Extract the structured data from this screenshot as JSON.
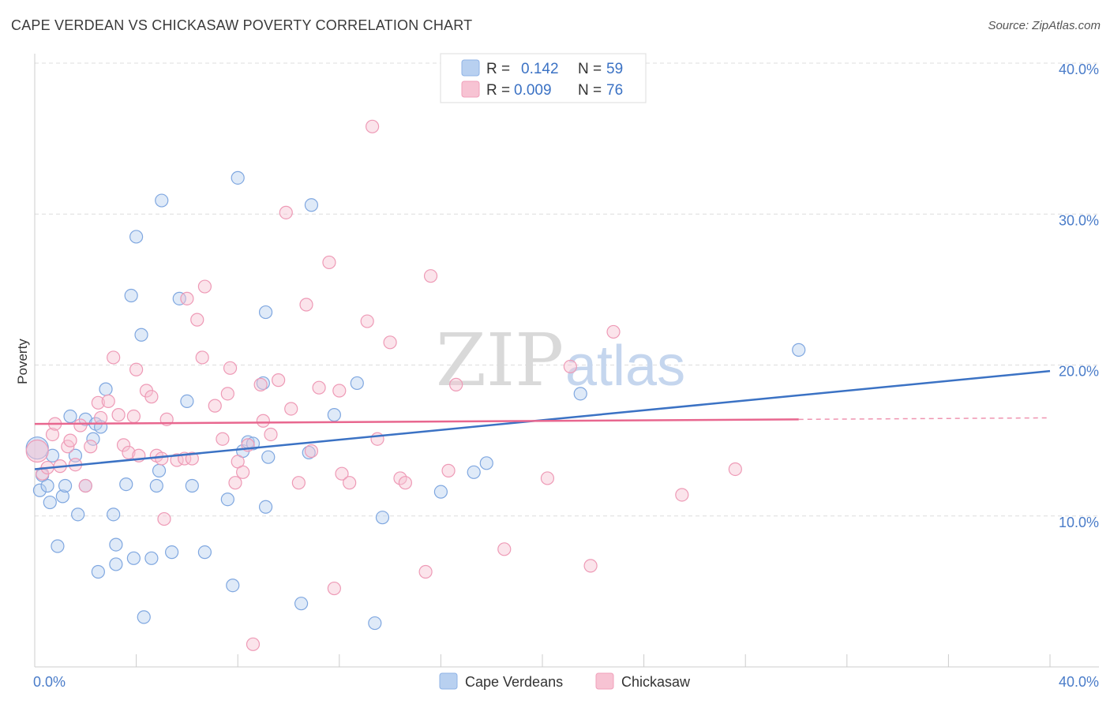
{
  "header": {
    "title": "CAPE VERDEAN VS CHICKASAW POVERTY CORRELATION CHART",
    "source": "Source: ZipAtlas.com"
  },
  "watermark": {
    "zip": "ZIP",
    "atlas": "atlas"
  },
  "colors": {
    "blue": "#3b72c4",
    "blue_fill": "#b8d0f0",
    "pink": "#e8678f",
    "pink_fill": "#f7c3d3",
    "grid": "#dddddd",
    "tick_label": "#4a7cc9"
  },
  "legend": {
    "rows": [
      {
        "r_label": "R =",
        "r_value": "0.142",
        "n_label": "N =",
        "n_value": "59"
      },
      {
        "r_label": "R =",
        "r_value": "0.009",
        "n_label": "N =",
        "n_value": "76"
      }
    ]
  },
  "chart_data": {
    "type": "scatter",
    "ylabel": "Poverty",
    "xlim": [
      0,
      40
    ],
    "ylim": [
      0,
      40
    ],
    "x_tick_labels": [
      "0.0%",
      "40.0%"
    ],
    "y_ticks": [
      10,
      20,
      30,
      40
    ],
    "y_tick_labels": [
      "10.0%",
      "20.0%",
      "30.0%",
      "40.0%"
    ],
    "grid": "horizontal dashed",
    "legend_position": "top-center",
    "series": [
      {
        "name": "Cape Verdeans",
        "color": "#3b72c4",
        "r": 0.142,
        "n": 59,
        "trend": {
          "x": [
            0,
            40
          ],
          "y": [
            13.1,
            19.6
          ]
        },
        "points": [
          [
            0.1,
            14.5
          ],
          [
            0.2,
            11.7
          ],
          [
            0.3,
            12.7
          ],
          [
            0.5,
            12.0
          ],
          [
            0.6,
            10.9
          ],
          [
            0.7,
            14.0
          ],
          [
            0.9,
            8.0
          ],
          [
            1.1,
            11.3
          ],
          [
            1.2,
            12.0
          ],
          [
            1.4,
            16.6
          ],
          [
            1.6,
            14.0
          ],
          [
            1.7,
            10.1
          ],
          [
            2.0,
            12.0
          ],
          [
            2.0,
            16.4
          ],
          [
            2.3,
            15.1
          ],
          [
            2.4,
            16.1
          ],
          [
            2.5,
            6.3
          ],
          [
            2.6,
            15.9
          ],
          [
            2.8,
            18.4
          ],
          [
            3.1,
            10.1
          ],
          [
            3.2,
            8.1
          ],
          [
            3.2,
            6.8
          ],
          [
            3.6,
            12.1
          ],
          [
            3.8,
            24.6
          ],
          [
            3.9,
            7.2
          ],
          [
            4.0,
            28.5
          ],
          [
            4.2,
            22.0
          ],
          [
            4.3,
            3.3
          ],
          [
            4.6,
            7.2
          ],
          [
            4.8,
            12.0
          ],
          [
            4.9,
            13.0
          ],
          [
            5.0,
            30.9
          ],
          [
            5.4,
            7.6
          ],
          [
            5.7,
            24.4
          ],
          [
            6.0,
            17.6
          ],
          [
            6.2,
            12.0
          ],
          [
            6.7,
            7.6
          ],
          [
            7.6,
            11.1
          ],
          [
            7.8,
            5.4
          ],
          [
            8.0,
            32.4
          ],
          [
            8.2,
            14.3
          ],
          [
            8.4,
            14.9
          ],
          [
            8.6,
            14.8
          ],
          [
            9.0,
            18.8
          ],
          [
            9.1,
            10.6
          ],
          [
            9.1,
            23.5
          ],
          [
            9.2,
            13.9
          ],
          [
            10.5,
            4.2
          ],
          [
            10.8,
            14.2
          ],
          [
            10.9,
            30.6
          ],
          [
            11.8,
            16.7
          ],
          [
            12.7,
            18.8
          ],
          [
            13.4,
            2.9
          ],
          [
            13.7,
            9.9
          ],
          [
            16.0,
            11.6
          ],
          [
            17.3,
            12.9
          ],
          [
            17.8,
            13.5
          ],
          [
            21.5,
            18.1
          ],
          [
            30.1,
            21.0
          ]
        ]
      },
      {
        "name": "Chickasaw",
        "color": "#e8678f",
        "r": 0.009,
        "n": 76,
        "trend": {
          "x": [
            0,
            30.1
          ],
          "y": [
            16.1,
            16.4
          ]
        },
        "trend_dashed": {
          "x": [
            30.1,
            40
          ],
          "y": [
            16.4,
            16.5
          ]
        },
        "points": [
          [
            0.1,
            14.3
          ],
          [
            0.3,
            12.8
          ],
          [
            0.5,
            13.2
          ],
          [
            0.7,
            15.4
          ],
          [
            0.8,
            16.1
          ],
          [
            1.0,
            13.3
          ],
          [
            1.3,
            14.6
          ],
          [
            1.4,
            15.0
          ],
          [
            1.6,
            13.4
          ],
          [
            1.8,
            16.0
          ],
          [
            2.0,
            12.0
          ],
          [
            2.2,
            14.6
          ],
          [
            2.5,
            17.5
          ],
          [
            2.6,
            16.5
          ],
          [
            2.9,
            17.6
          ],
          [
            3.1,
            20.5
          ],
          [
            3.3,
            16.7
          ],
          [
            3.5,
            14.7
          ],
          [
            3.7,
            14.2
          ],
          [
            3.9,
            16.6
          ],
          [
            4.0,
            19.7
          ],
          [
            4.1,
            14.0
          ],
          [
            4.4,
            18.3
          ],
          [
            4.6,
            17.9
          ],
          [
            4.8,
            14.0
          ],
          [
            5.0,
            13.8
          ],
          [
            5.1,
            9.8
          ],
          [
            5.2,
            16.4
          ],
          [
            5.6,
            13.7
          ],
          [
            5.9,
            13.8
          ],
          [
            6.0,
            24.4
          ],
          [
            6.2,
            13.8
          ],
          [
            6.4,
            23.0
          ],
          [
            6.6,
            20.5
          ],
          [
            6.7,
            25.2
          ],
          [
            7.1,
            17.3
          ],
          [
            7.4,
            15.1
          ],
          [
            7.6,
            18.1
          ],
          [
            7.7,
            19.8
          ],
          [
            7.9,
            12.2
          ],
          [
            8.0,
            13.6
          ],
          [
            8.2,
            12.9
          ],
          [
            8.4,
            14.7
          ],
          [
            8.6,
            1.5
          ],
          [
            8.9,
            18.7
          ],
          [
            9.0,
            16.3
          ],
          [
            9.3,
            15.4
          ],
          [
            9.6,
            19.0
          ],
          [
            9.9,
            30.1
          ],
          [
            10.1,
            17.1
          ],
          [
            10.4,
            12.2
          ],
          [
            10.7,
            24.0
          ],
          [
            10.9,
            14.3
          ],
          [
            11.2,
            18.5
          ],
          [
            11.6,
            26.8
          ],
          [
            11.8,
            5.2
          ],
          [
            12.0,
            18.3
          ],
          [
            12.1,
            12.8
          ],
          [
            12.4,
            12.2
          ],
          [
            13.1,
            22.9
          ],
          [
            13.3,
            35.8
          ],
          [
            13.5,
            15.1
          ],
          [
            14.0,
            21.5
          ],
          [
            14.4,
            12.5
          ],
          [
            14.6,
            12.2
          ],
          [
            15.4,
            6.3
          ],
          [
            15.6,
            25.9
          ],
          [
            16.3,
            13.0
          ],
          [
            16.6,
            18.7
          ],
          [
            18.5,
            7.8
          ],
          [
            20.2,
            12.5
          ],
          [
            21.1,
            19.9
          ],
          [
            21.9,
            6.7
          ],
          [
            22.8,
            22.2
          ],
          [
            25.5,
            11.4
          ],
          [
            27.6,
            13.1
          ]
        ]
      }
    ]
  }
}
